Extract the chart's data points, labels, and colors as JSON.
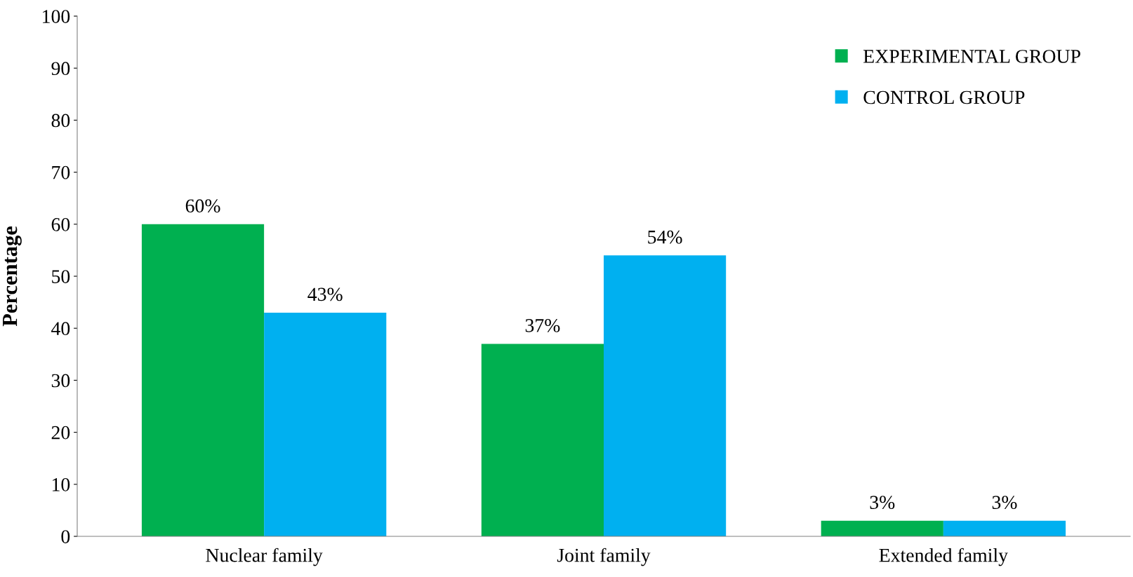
{
  "chart_data": {
    "type": "bar",
    "ylabel": "Percentage",
    "categories": [
      "Nuclear family",
      "Joint family",
      "Extended family"
    ],
    "series": [
      {
        "name": "EXPERIMENTAL GROUP",
        "color": "#00b050",
        "values": [
          60,
          37,
          3
        ],
        "value_labels": [
          "60%",
          "37%",
          "3%"
        ]
      },
      {
        "name": "CONTROL GROUP",
        "color": "#00b0f0",
        "values": [
          43,
          54,
          3
        ],
        "value_labels": [
          "43%",
          "54%",
          "3%"
        ]
      }
    ],
    "ylim": [
      0,
      100
    ],
    "yticks": [
      0,
      10,
      20,
      30,
      40,
      50,
      60,
      70,
      80,
      90,
      100
    ],
    "grid": false,
    "legend": "top right"
  }
}
